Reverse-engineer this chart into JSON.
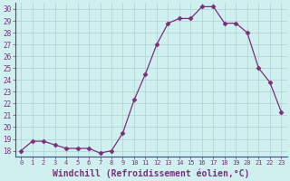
{
  "x": [
    0,
    1,
    2,
    3,
    4,
    5,
    6,
    7,
    8,
    9,
    10,
    11,
    12,
    13,
    14,
    15,
    16,
    17,
    18,
    19,
    20,
    21,
    22,
    23
  ],
  "y": [
    18.0,
    18.8,
    18.8,
    18.5,
    18.2,
    18.2,
    18.2,
    17.8,
    18.0,
    19.5,
    22.3,
    24.5,
    27.0,
    28.8,
    29.2,
    29.2,
    30.2,
    30.2,
    28.8,
    28.8,
    28.0,
    25.0,
    23.8,
    21.3
  ],
  "line_color": "#7b2f7b",
  "marker": "D",
  "marker_size": 2.5,
  "bg_color": "#d0f0f0",
  "grid_color": "#b0d8d8",
  "xlabel": "Windchill (Refroidissement éolien,°C)",
  "ylim": [
    17.5,
    30.5
  ],
  "xlim": [
    -0.5,
    23.5
  ],
  "yticks": [
    18,
    19,
    20,
    21,
    22,
    23,
    24,
    25,
    26,
    27,
    28,
    29,
    30
  ],
  "xticks": [
    0,
    1,
    2,
    3,
    4,
    5,
    6,
    7,
    8,
    9,
    10,
    11,
    12,
    13,
    14,
    15,
    16,
    17,
    18,
    19,
    20,
    21,
    22,
    23
  ],
  "tick_color": "#7b2f7b",
  "label_color": "#7b2f7b",
  "spine_color": "#7b2f7b",
  "xlabel_fontsize": 7.0,
  "ytick_fontsize": 5.5,
  "xtick_fontsize": 5.0
}
